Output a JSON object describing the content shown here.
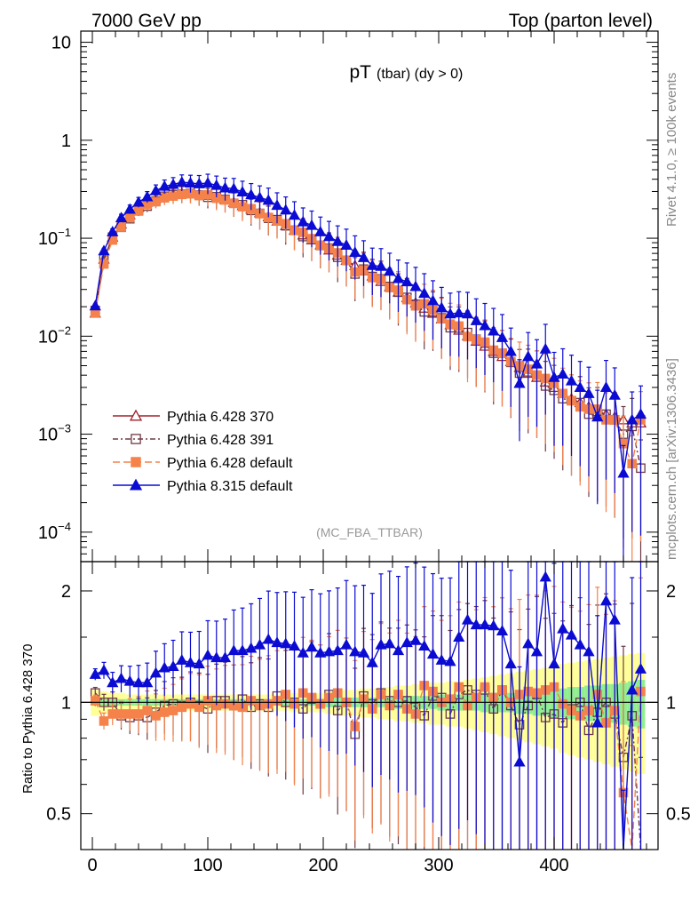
{
  "header": {
    "left": "7000 GeV pp",
    "right": "Top (parton level)"
  },
  "side_labels": {
    "top": "Rivet 4.1.0, ≥ 100k events",
    "bottom": "mcplots.cern.ch [arXiv:1306.3436]"
  },
  "chart_data": [
    {
      "type": "line",
      "panel": "main",
      "title_main": "pT",
      "title_sub": "(tbar) (dy > 0)",
      "annotation": "(MC_FBA_TTBAR)",
      "yscale": "log",
      "xlim": [
        -10,
        490
      ],
      "ylim": [
        5e-05,
        13
      ],
      "yticks": [
        {
          "value": 10,
          "label": "10",
          "exp": ""
        },
        {
          "value": 1,
          "label": "1",
          "exp": ""
        },
        {
          "value": 0.1,
          "label": "10",
          "exp": "−1"
        },
        {
          "value": 0.01,
          "label": "10",
          "exp": "−2"
        },
        {
          "value": 0.001,
          "label": "10",
          "exp": "−3"
        },
        {
          "value": 0.0001,
          "label": "10",
          "exp": "−4"
        }
      ],
      "x": [
        2.5,
        10,
        17.5,
        25,
        32.5,
        40,
        47.5,
        55,
        62.5,
        70,
        77.5,
        85,
        92.5,
        100,
        107.5,
        115,
        122.5,
        130,
        137.5,
        145,
        152.5,
        160,
        167.5,
        175,
        182.5,
        190,
        197.5,
        205,
        212.5,
        220,
        227.5,
        235,
        242.5,
        250,
        257.5,
        265,
        272.5,
        280,
        287.5,
        295,
        302.5,
        310,
        317.5,
        325,
        332.5,
        340,
        347.5,
        355,
        362.5,
        370,
        377.5,
        385,
        392.5,
        400,
        407.5,
        415,
        422.5,
        430,
        437.5,
        445,
        452.5,
        460,
        467.5,
        475
      ],
      "series": [
        {
          "name": "Pythia 6.428 370",
          "color": "#a1212b",
          "marker": "triangle-open",
          "dash": "",
          "values": [
            0.0172,
            0.0612,
            0.1025,
            0.1398,
            0.1736,
            0.2059,
            0.2332,
            0.2555,
            0.2734,
            0.2828,
            0.2871,
            0.2867,
            0.282,
            0.2731,
            0.2614,
            0.2474,
            0.2319,
            0.2153,
            0.1985,
            0.1817,
            0.1654,
            0.1495,
            0.1345,
            0.1206,
            0.1079,
            0.0962,
            0.0854,
            0.0758,
            0.0672,
            0.0594,
            0.0526,
            0.0465,
            0.0411,
            0.0362,
            0.032,
            0.0282,
            0.0247,
            0.0219,
            0.0193,
            0.0171,
            0.015,
            0.0131,
            0.0115,
            0.0101,
            0.0089,
            0.0079,
            0.007,
            0.0062,
            0.0055,
            0.0048,
            0.0043,
            0.0038,
            0.0034,
            0.003,
            0.0026,
            0.0023,
            0.0021,
            0.0019,
            0.0017,
            0.0016,
            0.0015,
            0.0014,
            0.0013,
            0.0013
          ]
        },
        {
          "name": "Pythia 6.428 391",
          "color": "#6e3a46",
          "marker": "square-open",
          "dash": "6,3,2,3",
          "values": [
            0.0183,
            0.0614,
            0.1026,
            0.1292,
            0.158,
            0.1904,
            0.2124,
            0.2395,
            0.2684,
            0.2792,
            0.2819,
            0.2871,
            0.2751,
            0.2618,
            0.2652,
            0.2496,
            0.2271,
            0.2198,
            0.1921,
            0.1793,
            0.1598,
            0.1548,
            0.1339,
            0.1207,
            0.1039,
            0.0979,
            0.0843,
            0.0793,
            0.0639,
            0.0594,
            0.0431,
            0.0484,
            0.0407,
            0.0385,
            0.0322,
            0.0281,
            0.0249,
            0.0212,
            0.0177,
            0.0177,
            0.0154,
            0.0122,
            0.0121,
            0.0109,
            0.0093,
            0.0085,
            0.0067,
            0.0067,
            0.0054,
            0.0042,
            0.0042,
            0.004,
            0.0031,
            0.0028,
            0.0023,
            0.0022,
            0.0021,
            0.0016,
            0.0016,
            0.0016,
            0.0014,
            0.001,
            0.0012,
            0.00045
          ]
        },
        {
          "name": "Pythia 6.428 default",
          "color": "#f4824a",
          "marker": "square-filled",
          "dash": "8,4",
          "values": [
            0.0174,
            0.0545,
            0.0958,
            0.1298,
            0.1622,
            0.1915,
            0.2205,
            0.2359,
            0.2583,
            0.2692,
            0.2796,
            0.2839,
            0.2722,
            0.2771,
            0.2557,
            0.2456,
            0.2274,
            0.2092,
            0.2001,
            0.1779,
            0.163,
            0.1507,
            0.1406,
            0.1198,
            0.1149,
            0.099,
            0.0848,
            0.0783,
            0.0709,
            0.0593,
            0.0452,
            0.0473,
            0.0396,
            0.0379,
            0.0313,
            0.0295,
            0.0236,
            0.0204,
            0.0214,
            0.0184,
            0.0151,
            0.0133,
            0.0127,
            0.0099,
            0.0092,
            0.0087,
            0.0072,
            0.0067,
            0.0055,
            0.005,
            0.0046,
            0.004,
            0.0037,
            0.0033,
            0.0026,
            0.0022,
            0.0019,
            0.0018,
            0.0018,
            0.0014,
            0.0014,
            0.0008,
            0.0005,
            0.0014
          ]
        },
        {
          "name": "Pythia 8.315 default",
          "color": "#0b0bd3",
          "marker": "triangle-filled",
          "dash": "",
          "values": [
            0.0204,
            0.0745,
            0.1163,
            0.1616,
            0.1977,
            0.2336,
            0.2646,
            0.3056,
            0.339,
            0.3542,
            0.3731,
            0.3659,
            0.3591,
            0.366,
            0.3463,
            0.3262,
            0.3204,
            0.2968,
            0.2776,
            0.2601,
            0.2442,
            0.2163,
            0.1942,
            0.1718,
            0.1469,
            0.1352,
            0.1162,
            0.1039,
            0.0926,
            0.0849,
            0.0718,
            0.0634,
            0.0528,
            0.0517,
            0.046,
            0.0388,
            0.0359,
            0.0321,
            0.0274,
            0.023,
            0.0195,
            0.0169,
            0.0173,
            0.0169,
            0.0144,
            0.0128,
            0.0113,
            0.0097,
            0.007,
            0.0033,
            0.0062,
            0.0052,
            0.0074,
            0.0038,
            0.0041,
            0.0035,
            0.003,
            0.0026,
            0.0015,
            0.003,
            0.0025,
            0.0004,
            0.0014,
            0.0016
          ]
        }
      ],
      "legend_position": "lower-left"
    },
    {
      "type": "line",
      "panel": "ratio",
      "ylabel": "Ratio to Pythia 6.428 370",
      "yscale": "log",
      "xlim": [
        -10,
        490
      ],
      "ylim": [
        0.4,
        2.4
      ],
      "yticks": [
        {
          "value": 0.5,
          "label": "0.5"
        },
        {
          "value": 1,
          "label": "1"
        },
        {
          "value": 2,
          "label": "2"
        }
      ],
      "xticks": [
        {
          "value": 0,
          "label": "0"
        },
        {
          "value": 100,
          "label": "100"
        },
        {
          "value": 200,
          "label": "200"
        },
        {
          "value": 300,
          "label": "300"
        },
        {
          "value": 400,
          "label": "400"
        }
      ],
      "band_inner_halfwidth": [
        0.02,
        0.02,
        0.02,
        0.02,
        0.02,
        0.02,
        0.02,
        0.02,
        0.02,
        0.02,
        0.02,
        0.02,
        0.02,
        0.02,
        0.02,
        0.02,
        0.02,
        0.02,
        0.02,
        0.02,
        0.02,
        0.02,
        0.02,
        0.02,
        0.02,
        0.02,
        0.02,
        0.03,
        0.03,
        0.03,
        0.03,
        0.03,
        0.03,
        0.03,
        0.03,
        0.04,
        0.04,
        0.04,
        0.04,
        0.04,
        0.05,
        0.05,
        0.05,
        0.05,
        0.05,
        0.06,
        0.06,
        0.06,
        0.06,
        0.07,
        0.07,
        0.08,
        0.08,
        0.09,
        0.09,
        0.1,
        0.1,
        0.11,
        0.11,
        0.12,
        0.12,
        0.13,
        0.14,
        0.15
      ],
      "band_outer_halfwidth": [
        0.08,
        0.07,
        0.06,
        0.06,
        0.05,
        0.05,
        0.05,
        0.05,
        0.05,
        0.05,
        0.05,
        0.05,
        0.05,
        0.05,
        0.05,
        0.05,
        0.05,
        0.05,
        0.05,
        0.05,
        0.05,
        0.05,
        0.05,
        0.06,
        0.06,
        0.06,
        0.06,
        0.07,
        0.07,
        0.08,
        0.08,
        0.09,
        0.09,
        0.1,
        0.1,
        0.11,
        0.11,
        0.12,
        0.12,
        0.13,
        0.13,
        0.14,
        0.14,
        0.15,
        0.16,
        0.17,
        0.18,
        0.19,
        0.2,
        0.21,
        0.22,
        0.23,
        0.24,
        0.25,
        0.27,
        0.28,
        0.29,
        0.3,
        0.31,
        0.32,
        0.33,
        0.34,
        0.35,
        0.36
      ],
      "band_colors": {
        "inner": "#90ee90",
        "outer": "#ffff99"
      },
      "series": [
        {
          "name": "Pythia 6.428 391",
          "color": "#6e3a46",
          "values": [
            1.06,
            1.0,
            1.0,
            0.92,
            0.91,
            0.92,
            0.91,
            0.94,
            0.98,
            0.99,
            0.98,
            1.0,
            0.98,
            0.96,
            1.01,
            1.01,
            0.98,
            1.02,
            0.97,
            0.99,
            0.97,
            1.04,
            1.0,
            1.0,
            0.96,
            1.02,
            0.99,
            1.05,
            0.95,
            1.0,
            0.82,
            1.04,
            0.99,
            1.06,
            1.01,
            1.0,
            1.01,
            0.97,
            0.92,
            1.04,
            1.03,
            0.93,
            1.05,
            1.08,
            1.05,
            1.08,
            0.96,
            1.08,
            0.98,
            0.87,
            0.98,
            1.05,
            0.91,
            0.93,
            0.88,
            0.96,
            1.0,
            0.84,
            0.94,
            1.0,
            0.93,
            0.71,
            0.92,
            0.35
          ]
        },
        {
          "name": "Pythia 6.428 default",
          "color": "#f4824a",
          "values": [
            1.01,
            0.89,
            0.93,
            0.93,
            0.93,
            0.93,
            0.95,
            0.92,
            0.94,
            0.95,
            0.97,
            0.99,
            0.97,
            1.01,
            0.98,
            0.99,
            0.98,
            0.97,
            1.01,
            0.98,
            0.99,
            1.01,
            1.05,
            0.99,
            1.06,
            1.03,
            0.99,
            1.03,
            1.06,
            1.0,
            0.86,
            1.02,
            0.96,
            1.05,
            0.98,
            1.05,
            0.96,
            0.93,
            1.11,
            1.07,
            1.0,
            1.02,
            1.1,
            0.98,
            1.03,
            1.1,
            1.03,
            1.08,
            1.0,
            1.05,
            1.07,
            1.06,
            1.08,
            1.1,
            0.99,
            0.95,
            0.92,
            0.95,
            1.05,
            0.88,
            0.95,
            0.57,
            0.38,
            1.07
          ]
        },
        {
          "name": "Pythia 8.315 default",
          "color": "#0b0bd3",
          "values": [
            1.19,
            1.22,
            1.13,
            1.16,
            1.14,
            1.13,
            1.13,
            1.2,
            1.24,
            1.25,
            1.3,
            1.28,
            1.27,
            1.34,
            1.32,
            1.32,
            1.38,
            1.38,
            1.4,
            1.43,
            1.48,
            1.45,
            1.44,
            1.42,
            1.36,
            1.41,
            1.36,
            1.37,
            1.38,
            1.43,
            1.37,
            1.36,
            1.28,
            1.43,
            1.44,
            1.38,
            1.45,
            1.47,
            1.42,
            1.35,
            1.3,
            1.29,
            1.5,
            1.67,
            1.62,
            1.62,
            1.61,
            1.56,
            1.27,
            0.69,
            1.44,
            1.37,
            2.18,
            1.27,
            1.58,
            1.52,
            1.43,
            1.37,
            0.88,
            1.88,
            1.67,
            0.29,
            1.08,
            1.23
          ]
        }
      ]
    }
  ]
}
